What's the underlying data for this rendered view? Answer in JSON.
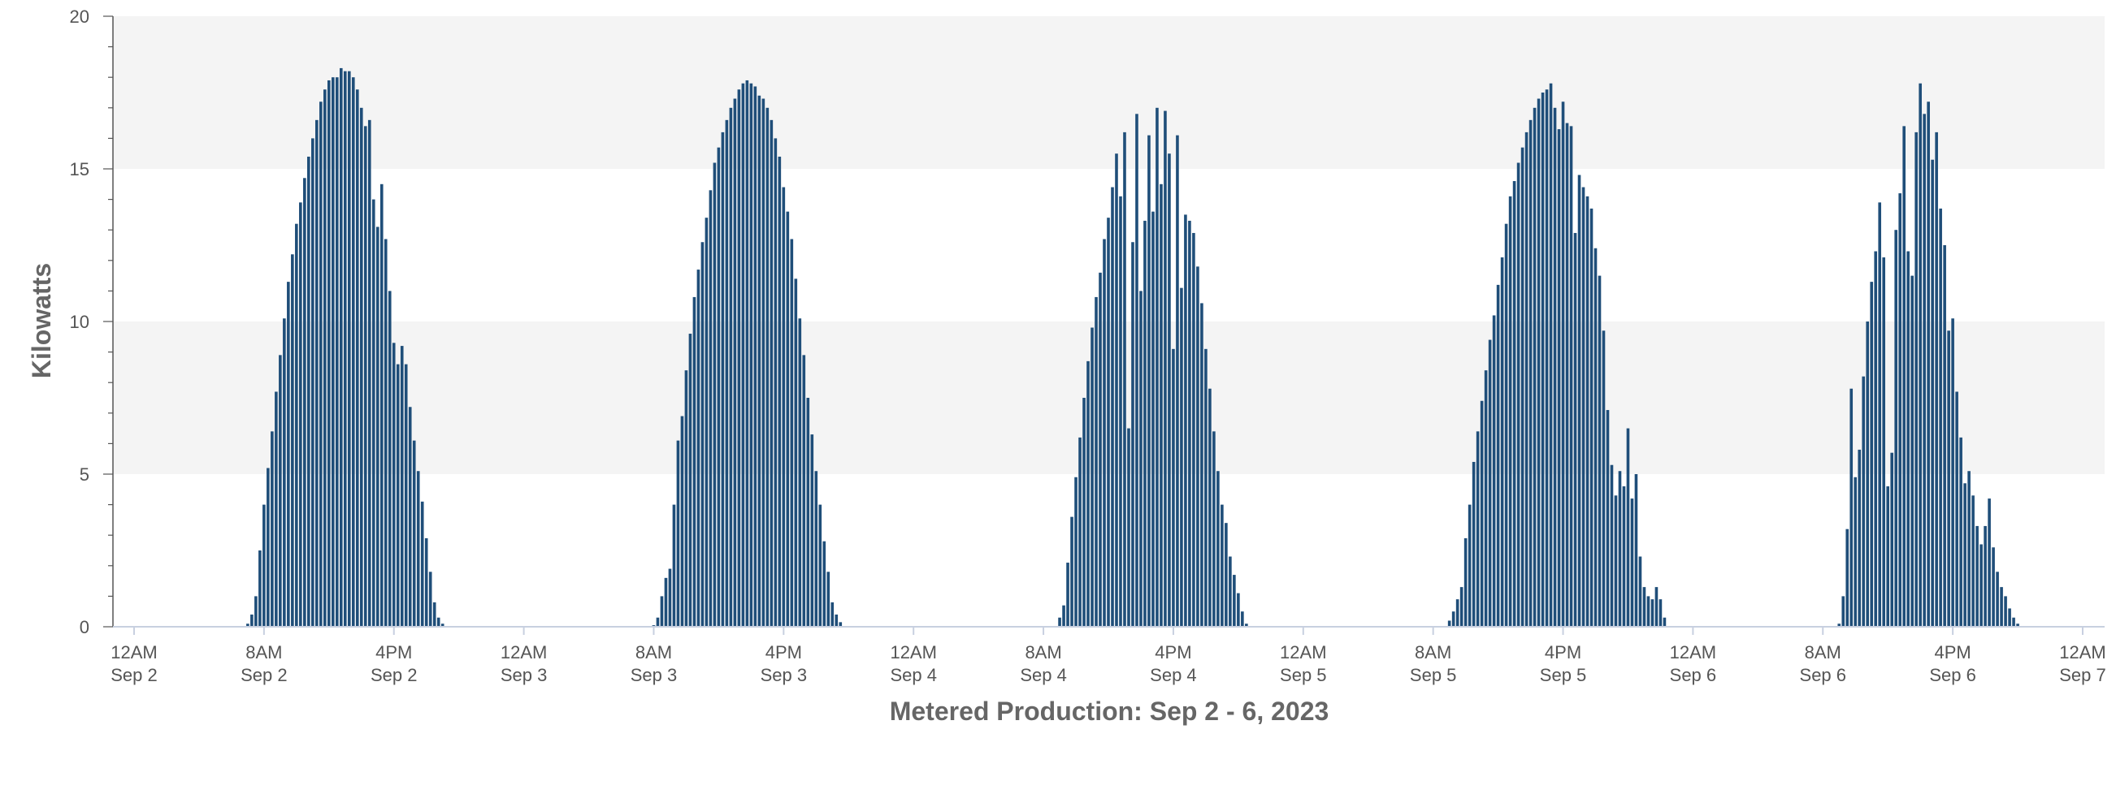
{
  "chart_data": {
    "type": "bar",
    "title": "Metered Production: Sep 2 - 6, 2023",
    "ylabel": "Kilowatts",
    "xlabel": "",
    "ylim": [
      0,
      20
    ],
    "yticks": [
      "0",
      "5",
      "10",
      "15",
      "20"
    ],
    "xticks": [
      {
        "hour": 0,
        "line1": "12AM",
        "line2": "Sep 2"
      },
      {
        "hour": 8,
        "line1": "8AM",
        "line2": "Sep 2"
      },
      {
        "hour": 16,
        "line1": "4PM",
        "line2": "Sep 2"
      },
      {
        "hour": 24,
        "line1": "12AM",
        "line2": "Sep 3"
      },
      {
        "hour": 32,
        "line1": "8AM",
        "line2": "Sep 3"
      },
      {
        "hour": 40,
        "line1": "4PM",
        "line2": "Sep 3"
      },
      {
        "hour": 48,
        "line1": "12AM",
        "line2": "Sep 4"
      },
      {
        "hour": 56,
        "line1": "8AM",
        "line2": "Sep 4"
      },
      {
        "hour": 64,
        "line1": "4PM",
        "line2": "Sep 4"
      },
      {
        "hour": 72,
        "line1": "12AM",
        "line2": "Sep 5"
      },
      {
        "hour": 80,
        "line1": "8AM",
        "line2": "Sep 5"
      },
      {
        "hour": 88,
        "line1": "4PM",
        "line2": "Sep 5"
      },
      {
        "hour": 96,
        "line1": "12AM",
        "line2": "Sep 6"
      },
      {
        "hour": 104,
        "line1": "8AM",
        "line2": "Sep 6"
      },
      {
        "hour": 112,
        "line1": "4PM",
        "line2": "Sep 6"
      },
      {
        "hour": 120,
        "line1": "12AM",
        "line2": "Sep 7"
      }
    ],
    "bar_color": "#1f4e79",
    "band_color": "#f4f4f4",
    "grid_bands": [
      [
        5,
        10
      ],
      [
        15,
        20
      ]
    ],
    "interval_hours": 0.25,
    "series": [
      {
        "day": "Sep 2",
        "start_hour": 7,
        "values": [
          0.1,
          0.4,
          1.0,
          2.5,
          4.0,
          5.2,
          6.4,
          7.7,
          8.9,
          10.1,
          11.3,
          12.2,
          13.2,
          13.9,
          14.7,
          15.4,
          16.0,
          16.6,
          17.2,
          17.6,
          17.9,
          18.0,
          18.0,
          18.3,
          18.2,
          18.2,
          18.0,
          17.6,
          17.0,
          16.4,
          16.6,
          14.0,
          13.1,
          14.5,
          12.7,
          11.0,
          9.3,
          8.6,
          9.2,
          8.6,
          7.2,
          6.1,
          5.1,
          4.1,
          2.9,
          1.8,
          0.8,
          0.3,
          0.1
        ]
      },
      {
        "day": "Sep 3",
        "start_hour": 32,
        "values": [
          0.05,
          0.3,
          1.0,
          1.6,
          1.9,
          4.0,
          6.1,
          6.9,
          8.4,
          9.6,
          10.8,
          11.7,
          12.6,
          13.4,
          14.3,
          15.2,
          15.7,
          16.2,
          16.6,
          17.0,
          17.3,
          17.6,
          17.8,
          17.9,
          17.8,
          17.7,
          17.4,
          17.3,
          17.0,
          16.6,
          16.0,
          15.4,
          14.4,
          13.6,
          12.7,
          11.4,
          10.1,
          8.9,
          7.5,
          6.3,
          5.1,
          4.0,
          2.8,
          1.8,
          0.8,
          0.4,
          0.15
        ]
      },
      {
        "day": "Sep 4",
        "start_hour": 57,
        "values": [
          0.3,
          0.7,
          2.1,
          3.6,
          4.9,
          6.2,
          7.5,
          8.7,
          9.8,
          10.8,
          11.6,
          12.7,
          13.4,
          14.4,
          15.5,
          14.1,
          16.2,
          6.5,
          12.6,
          16.8,
          11.0,
          13.3,
          16.1,
          13.6,
          17.0,
          14.5,
          16.9,
          15.5,
          9.1,
          16.1,
          11.1,
          13.5,
          13.3,
          12.9,
          11.8,
          10.6,
          9.1,
          7.8,
          6.4,
          5.1,
          4.0,
          3.4,
          2.3,
          1.7,
          1.1,
          0.5,
          0.1
        ]
      },
      {
        "day": "Sep 5",
        "start_hour": 81,
        "values": [
          0.2,
          0.5,
          0.9,
          1.3,
          2.9,
          4.0,
          5.4,
          6.4,
          7.4,
          8.4,
          9.4,
          10.2,
          11.2,
          12.1,
          13.2,
          14.1,
          14.6,
          15.2,
          15.7,
          16.2,
          16.6,
          17.0,
          17.3,
          17.5,
          17.6,
          17.8,
          17.0,
          16.3,
          17.2,
          16.5,
          16.4,
          12.9,
          14.8,
          14.4,
          14.1,
          13.7,
          12.4,
          11.5,
          9.7,
          7.1,
          5.3,
          4.3,
          5.1,
          4.6,
          6.5,
          4.2,
          5.0,
          2.3,
          1.3,
          1.0,
          0.9,
          1.3,
          0.9,
          0.3
        ]
      },
      {
        "day": "Sep 6",
        "start_hour": 105,
        "values": [
          0.1,
          1.0,
          3.2,
          7.8,
          4.9,
          5.8,
          8.2,
          10.0,
          11.3,
          12.3,
          13.9,
          12.1,
          4.6,
          5.7,
          13.0,
          14.2,
          16.4,
          12.3,
          11.5,
          16.2,
          17.8,
          16.8,
          17.2,
          15.3,
          16.2,
          13.7,
          12.5,
          9.7,
          10.1,
          7.7,
          6.2,
          4.7,
          5.1,
          4.3,
          3.3,
          2.7,
          3.3,
          4.2,
          2.6,
          1.8,
          1.3,
          1.0,
          0.6,
          0.3,
          0.1
        ]
      }
    ]
  }
}
